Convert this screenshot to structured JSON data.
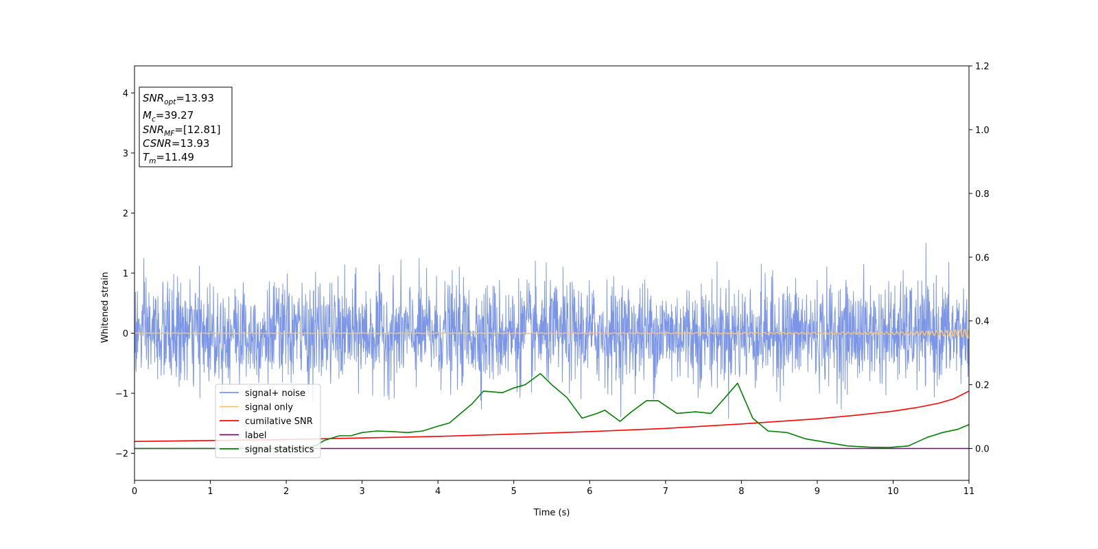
{
  "chart_data": {
    "type": "line",
    "title": "",
    "xlabel": "Time (s)",
    "ylabel": "Whitened strain",
    "xlim": [
      0,
      11
    ],
    "ylim": [
      -2.45,
      4.45
    ],
    "y2lim": [
      -0.1,
      1.2
    ],
    "x_ticks": [
      0,
      1,
      2,
      3,
      4,
      5,
      6,
      7,
      8,
      9,
      10,
      11
    ],
    "y_ticks": [
      -2,
      -1,
      0,
      1,
      2,
      3,
      4
    ],
    "y2_ticks": [
      "0.0",
      "0.2",
      "0.4",
      "0.6",
      "0.8",
      "1.0",
      "1.2"
    ],
    "grid": false,
    "legend_position": "lower-left",
    "annotation": {
      "lines": [
        {
          "sym": "SNR",
          "sub": "opt",
          "rest": "=13.93"
        },
        {
          "sym": "M",
          "sub": "c",
          "rest": "=39.27"
        },
        {
          "sym": "SNR",
          "sub": "MF",
          "rest": "=[12.81]"
        },
        {
          "sym": "CSNR",
          "sub": "",
          "rest": "=13.93"
        },
        {
          "sym": "T",
          "sub": "m",
          "rest": "=11.49"
        }
      ]
    },
    "series": [
      {
        "name": "signal+ noise",
        "color": "#7b96e8",
        "axis": "left",
        "style": "noise",
        "amplitude_sd": 0.42
      },
      {
        "name": "signal only",
        "color": "#f5c27a",
        "axis": "left",
        "style": "chirp",
        "amplitude_end": 0.12
      },
      {
        "name": "cumilative SNR",
        "color": "#ff0000",
        "axis": "right",
        "x": [
          0,
          1,
          2,
          3,
          4,
          5,
          6,
          7,
          8,
          9,
          9.5,
          10,
          10.3,
          10.6,
          10.8,
          11
        ],
        "y": [
          0.022,
          0.025,
          0.028,
          0.033,
          0.038,
          0.045,
          0.053,
          0.063,
          0.077,
          0.093,
          0.104,
          0.117,
          0.128,
          0.142,
          0.156,
          0.18
        ]
      },
      {
        "name": "label",
        "color": "#800080",
        "axis": "right",
        "x": [
          0,
          11
        ],
        "y": [
          0.0,
          0.0
        ]
      },
      {
        "name": "signal statistics",
        "color": "#008000",
        "axis": "right",
        "x": [
          0,
          2.2,
          2.4,
          2.5,
          2.7,
          2.85,
          3.0,
          3.2,
          3.4,
          3.6,
          3.8,
          4.0,
          4.15,
          4.3,
          4.45,
          4.6,
          4.85,
          5.0,
          5.15,
          5.35,
          5.5,
          5.7,
          5.9,
          6.1,
          6.2,
          6.4,
          6.55,
          6.75,
          6.9,
          7.15,
          7.4,
          7.6,
          7.75,
          7.95,
          8.15,
          8.35,
          8.6,
          8.85,
          9.1,
          9.4,
          9.7,
          9.95,
          10.2,
          10.45,
          10.65,
          10.85,
          11.0
        ],
        "y": [
          0.0,
          0.0,
          0.01,
          0.025,
          0.04,
          0.04,
          0.05,
          0.055,
          0.053,
          0.05,
          0.055,
          0.07,
          0.08,
          0.11,
          0.14,
          0.18,
          0.175,
          0.19,
          0.2,
          0.235,
          0.2,
          0.16,
          0.095,
          0.11,
          0.12,
          0.085,
          0.115,
          0.15,
          0.15,
          0.11,
          0.115,
          0.11,
          0.15,
          0.205,
          0.095,
          0.055,
          0.05,
          0.03,
          0.02,
          0.008,
          0.004,
          0.003,
          0.008,
          0.035,
          0.05,
          0.06,
          0.075
        ]
      }
    ]
  }
}
